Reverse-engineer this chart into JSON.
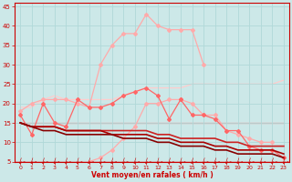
{
  "background_color": "#cce8e8",
  "grid_color": "#b0d8d8",
  "xlabel": "Vent moyen/en rafales ( km/h )",
  "xlabel_color": "#cc0000",
  "tick_color": "#cc0000",
  "xlim": [
    -0.5,
    23.5
  ],
  "ylim": [
    5,
    46
  ],
  "yticks": [
    5,
    10,
    15,
    20,
    25,
    30,
    35,
    40,
    45
  ],
  "xticks": [
    0,
    1,
    2,
    3,
    4,
    5,
    6,
    7,
    8,
    9,
    10,
    11,
    12,
    13,
    14,
    15,
    16,
    17,
    18,
    19,
    20,
    21,
    22,
    23
  ],
  "series": [
    {
      "x": [
        0,
        1,
        2,
        3,
        4,
        5,
        6,
        7,
        8,
        9,
        10,
        11,
        12,
        13,
        14,
        15,
        16,
        17,
        18,
        19,
        20,
        21,
        22,
        23
      ],
      "y": [
        null,
        null,
        null,
        null,
        null,
        null,
        5,
        6,
        8,
        11,
        14,
        20,
        20,
        21,
        21,
        20,
        17,
        17,
        13,
        12,
        11,
        10,
        10,
        null
      ],
      "color": "#ffaaaa",
      "lw": 0.9,
      "marker": "D",
      "ms": 2.0,
      "zorder": 2
    },
    {
      "x": [
        0,
        1,
        2,
        3,
        4,
        5,
        6,
        7,
        8,
        9,
        10,
        11,
        12,
        13,
        14,
        15,
        16,
        17,
        18,
        19,
        20,
        21,
        22,
        23
      ],
      "y": [
        18,
        20,
        21,
        21,
        21,
        20,
        19,
        30,
        35,
        38,
        38,
        43,
        40,
        39,
        39,
        39,
        30,
        null,
        null,
        null,
        null,
        null,
        null,
        null
      ],
      "color": "#ffaaaa",
      "lw": 0.9,
      "marker": "D",
      "ms": 2.0,
      "zorder": 2
    },
    {
      "x": [
        0,
        1,
        2,
        3,
        4,
        5,
        6,
        7,
        8,
        9,
        10,
        11,
        12,
        13,
        14,
        15,
        16,
        17,
        18,
        19,
        20,
        21,
        22,
        23
      ],
      "y": [
        17,
        12,
        20,
        15,
        14,
        21,
        19,
        19,
        20,
        22,
        23,
        24,
        22,
        16,
        21,
        17,
        17,
        16,
        13,
        13,
        9,
        8,
        8,
        6
      ],
      "color": "#ff6666",
      "lw": 0.9,
      "marker": "D",
      "ms": 2.0,
      "zorder": 3
    },
    {
      "x": [
        0,
        1,
        2,
        3,
        4,
        5,
        6,
        7,
        8,
        9,
        10,
        11,
        12,
        13,
        14,
        15,
        16,
        17,
        18,
        19,
        20,
        21,
        22,
        23
      ],
      "y": [
        19,
        19,
        21,
        22,
        21,
        21,
        21,
        21,
        21,
        22,
        23,
        24,
        24,
        24,
        24,
        25,
        25,
        25,
        25,
        25,
        25,
        25,
        25,
        26
      ],
      "color": "#ffcccc",
      "lw": 0.9,
      "marker": null,
      "ms": 0,
      "zorder": 1
    },
    {
      "x": [
        0,
        1,
        2,
        3,
        4,
        5,
        6,
        7,
        8,
        9,
        10,
        11,
        12,
        13,
        14,
        15,
        16,
        17,
        18,
        19,
        20,
        21,
        22,
        23
      ],
      "y": [
        15,
        15,
        15,
        15,
        15,
        15,
        15,
        15,
        15,
        15,
        15,
        15,
        15,
        15,
        15,
        15,
        15,
        15,
        15,
        15,
        15,
        15,
        15,
        15
      ],
      "color": "#ee8888",
      "lw": 0.9,
      "marker": null,
      "ms": 0,
      "zorder": 1
    },
    {
      "x": [
        0,
        1,
        2,
        3,
        4,
        5,
        6,
        7,
        8,
        9,
        10,
        11,
        12,
        13,
        14,
        15,
        16,
        17,
        18,
        19,
        20,
        21,
        22,
        23
      ],
      "y": [
        15,
        14,
        14,
        14,
        13,
        13,
        13,
        13,
        13,
        13,
        13,
        13,
        12,
        12,
        11,
        11,
        11,
        11,
        10,
        10,
        9,
        9,
        9,
        9
      ],
      "color": "#cc2222",
      "lw": 1.2,
      "marker": null,
      "ms": 0,
      "zorder": 4
    },
    {
      "x": [
        0,
        1,
        2,
        3,
        4,
        5,
        6,
        7,
        8,
        9,
        10,
        11,
        12,
        13,
        14,
        15,
        16,
        17,
        18,
        19,
        20,
        21,
        22,
        23
      ],
      "y": [
        15,
        14,
        14,
        14,
        13,
        13,
        13,
        13,
        12,
        12,
        12,
        12,
        11,
        11,
        10,
        10,
        10,
        9,
        9,
        8,
        8,
        8,
        8,
        7
      ],
      "color": "#aa0000",
      "lw": 1.2,
      "marker": null,
      "ms": 0,
      "zorder": 4
    },
    {
      "x": [
        0,
        1,
        2,
        3,
        4,
        5,
        6,
        7,
        8,
        9,
        10,
        11,
        12,
        13,
        14,
        15,
        16,
        17,
        18,
        19,
        20,
        21,
        22,
        23
      ],
      "y": [
        15,
        14,
        13,
        13,
        12,
        12,
        12,
        12,
        12,
        11,
        11,
        11,
        10,
        10,
        9,
        9,
        9,
        8,
        8,
        7,
        7,
        7,
        7,
        6
      ],
      "color": "#880000",
      "lw": 1.2,
      "marker": null,
      "ms": 0,
      "zorder": 4
    }
  ]
}
